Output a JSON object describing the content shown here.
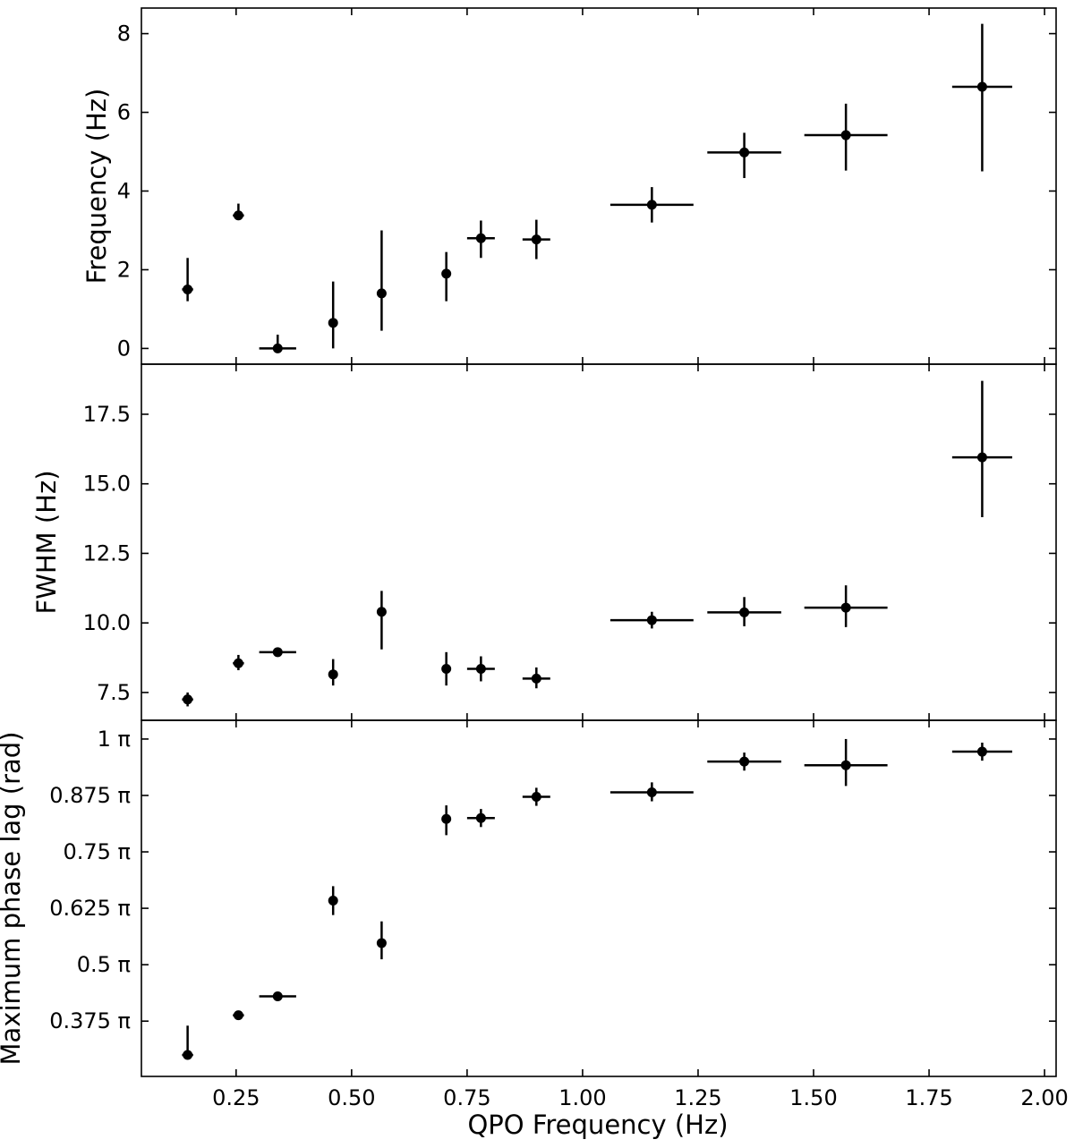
{
  "chart_data": {
    "type": "scatter",
    "xlabel": "QPO Frequency (Hz)",
    "xlim": [
      0.045,
      2.025
    ],
    "xticks": [
      0.25,
      0.5,
      0.75,
      1.0,
      1.25,
      1.5,
      1.75,
      2.0
    ],
    "xtick_labels": [
      "0.25",
      "0.50",
      "0.75",
      "1.00",
      "1.25",
      "1.50",
      "1.75",
      "2.00"
    ],
    "grid": false,
    "marker_color": "#000000",
    "panels": [
      {
        "ylabel": "Frequency (Hz)",
        "ylim": [
          -0.4,
          8.65
        ],
        "yticks": [
          0,
          2,
          4,
          6,
          8
        ],
        "ytick_labels": [
          "0",
          "2",
          "4",
          "6",
          "8"
        ],
        "points": [
          {
            "x": 0.145,
            "xerr": [
              0.012,
              0.012
            ],
            "y": 1.5,
            "yerr": [
              0.3,
              0.8
            ]
          },
          {
            "x": 0.255,
            "xerr": [
              0.012,
              0.012
            ],
            "y": 3.38,
            "yerr": [
              0.12,
              0.3
            ]
          },
          {
            "x": 0.34,
            "xerr": [
              0.04,
              0.04
            ],
            "y": 0.0,
            "yerr": [
              0.0,
              0.35
            ]
          },
          {
            "x": 0.46,
            "xerr": [
              0.0,
              0.0
            ],
            "y": 0.65,
            "yerr": [
              0.65,
              1.05
            ]
          },
          {
            "x": 0.565,
            "xerr": [
              0.0,
              0.0
            ],
            "y": 1.4,
            "yerr": [
              0.95,
              1.6
            ]
          },
          {
            "x": 0.705,
            "xerr": [
              0.01,
              0.01
            ],
            "y": 1.9,
            "yerr": [
              0.7,
              0.55
            ]
          },
          {
            "x": 0.78,
            "xerr": [
              0.03,
              0.03
            ],
            "y": 2.8,
            "yerr": [
              0.5,
              0.45
            ]
          },
          {
            "x": 0.9,
            "xerr": [
              0.03,
              0.03
            ],
            "y": 2.77,
            "yerr": [
              0.5,
              0.5
            ]
          },
          {
            "x": 1.15,
            "xerr": [
              0.09,
              0.09
            ],
            "y": 3.65,
            "yerr": [
              0.45,
              0.45
            ]
          },
          {
            "x": 1.35,
            "xerr": [
              0.08,
              0.08
            ],
            "y": 4.98,
            "yerr": [
              0.65,
              0.5
            ]
          },
          {
            "x": 1.57,
            "xerr": [
              0.09,
              0.09
            ],
            "y": 5.42,
            "yerr": [
              0.9,
              0.8
            ]
          },
          {
            "x": 1.865,
            "xerr": [
              0.065,
              0.065
            ],
            "y": 6.65,
            "yerr": [
              2.15,
              1.6
            ]
          }
        ]
      },
      {
        "ylabel": "FWHM (Hz)",
        "ylim": [
          6.5,
          19.3
        ],
        "yticks": [
          7.5,
          10.0,
          12.5,
          15.0,
          17.5
        ],
        "ytick_labels": [
          "7.5",
          "10.0",
          "12.5",
          "15.0",
          "17.5"
        ],
        "points": [
          {
            "x": 0.145,
            "xerr": [
              0.012,
              0.012
            ],
            "y": 7.25,
            "yerr": [
              0.25,
              0.25
            ]
          },
          {
            "x": 0.255,
            "xerr": [
              0.012,
              0.012
            ],
            "y": 8.55,
            "yerr": [
              0.25,
              0.3
            ]
          },
          {
            "x": 0.34,
            "xerr": [
              0.04,
              0.04
            ],
            "y": 8.95,
            "yerr": [
              0.12,
              0.12
            ]
          },
          {
            "x": 0.46,
            "xerr": [
              0.0,
              0.0
            ],
            "y": 8.15,
            "yerr": [
              0.4,
              0.55
            ]
          },
          {
            "x": 0.565,
            "xerr": [
              0.0,
              0.0
            ],
            "y": 10.4,
            "yerr": [
              1.35,
              0.75
            ]
          },
          {
            "x": 0.705,
            "xerr": [
              0.01,
              0.01
            ],
            "y": 8.35,
            "yerr": [
              0.6,
              0.6
            ]
          },
          {
            "x": 0.78,
            "xerr": [
              0.03,
              0.03
            ],
            "y": 8.35,
            "yerr": [
              0.45,
              0.45
            ]
          },
          {
            "x": 0.9,
            "xerr": [
              0.03,
              0.03
            ],
            "y": 8.0,
            "yerr": [
              0.35,
              0.4
            ]
          },
          {
            "x": 1.15,
            "xerr": [
              0.09,
              0.09
            ],
            "y": 10.1,
            "yerr": [
              0.3,
              0.3
            ]
          },
          {
            "x": 1.35,
            "xerr": [
              0.08,
              0.08
            ],
            "y": 10.38,
            "yerr": [
              0.5,
              0.55
            ]
          },
          {
            "x": 1.57,
            "xerr": [
              0.09,
              0.09
            ],
            "y": 10.55,
            "yerr": [
              0.7,
              0.8
            ]
          },
          {
            "x": 1.865,
            "xerr": [
              0.065,
              0.065
            ],
            "y": 15.95,
            "yerr": [
              2.15,
              2.75
            ]
          }
        ]
      },
      {
        "ylabel": "Maximum phase lag (rad)",
        "ylim": [
          0.2525,
          1.0415
        ],
        "yticks": [
          0.375,
          0.5,
          0.625,
          0.75,
          0.875,
          1.0
        ],
        "ytick_labels": [
          "0.375 π",
          "0.5 π",
          "0.625 π",
          "0.75 π",
          "0.875 π",
          "1 π"
        ],
        "points": [
          {
            "x": 0.145,
            "xerr": [
              0.012,
              0.012
            ],
            "y": 0.3,
            "yerr": [
              0.0,
              0.065
            ]
          },
          {
            "x": 0.255,
            "xerr": [
              0.012,
              0.012
            ],
            "y": 0.388,
            "yerr": [
              0.005,
              0.005
            ]
          },
          {
            "x": 0.34,
            "xerr": [
              0.04,
              0.04
            ],
            "y": 0.43,
            "yerr": [
              0.004,
              0.004
            ]
          },
          {
            "x": 0.46,
            "xerr": [
              0.0,
              0.0
            ],
            "y": 0.642,
            "yerr": [
              0.032,
              0.032
            ]
          },
          {
            "x": 0.565,
            "xerr": [
              0.0,
              0.0
            ],
            "y": 0.548,
            "yerr": [
              0.036,
              0.048
            ]
          },
          {
            "x": 0.705,
            "xerr": [
              0.01,
              0.01
            ],
            "y": 0.823,
            "yerr": [
              0.036,
              0.03
            ]
          },
          {
            "x": 0.78,
            "xerr": [
              0.03,
              0.03
            ],
            "y": 0.825,
            "yerr": [
              0.02,
              0.02
            ]
          },
          {
            "x": 0.9,
            "xerr": [
              0.03,
              0.03
            ],
            "y": 0.872,
            "yerr": [
              0.02,
              0.02
            ]
          },
          {
            "x": 1.15,
            "xerr": [
              0.09,
              0.09
            ],
            "y": 0.882,
            "yerr": [
              0.02,
              0.022
            ]
          },
          {
            "x": 1.35,
            "xerr": [
              0.08,
              0.08
            ],
            "y": 0.95,
            "yerr": [
              0.02,
              0.02
            ]
          },
          {
            "x": 1.57,
            "xerr": [
              0.09,
              0.09
            ],
            "y": 0.942,
            "yerr": [
              0.046,
              0.058
            ]
          },
          {
            "x": 1.865,
            "xerr": [
              0.065,
              0.065
            ],
            "y": 0.972,
            "yerr": [
              0.02,
              0.02
            ]
          }
        ]
      }
    ]
  }
}
